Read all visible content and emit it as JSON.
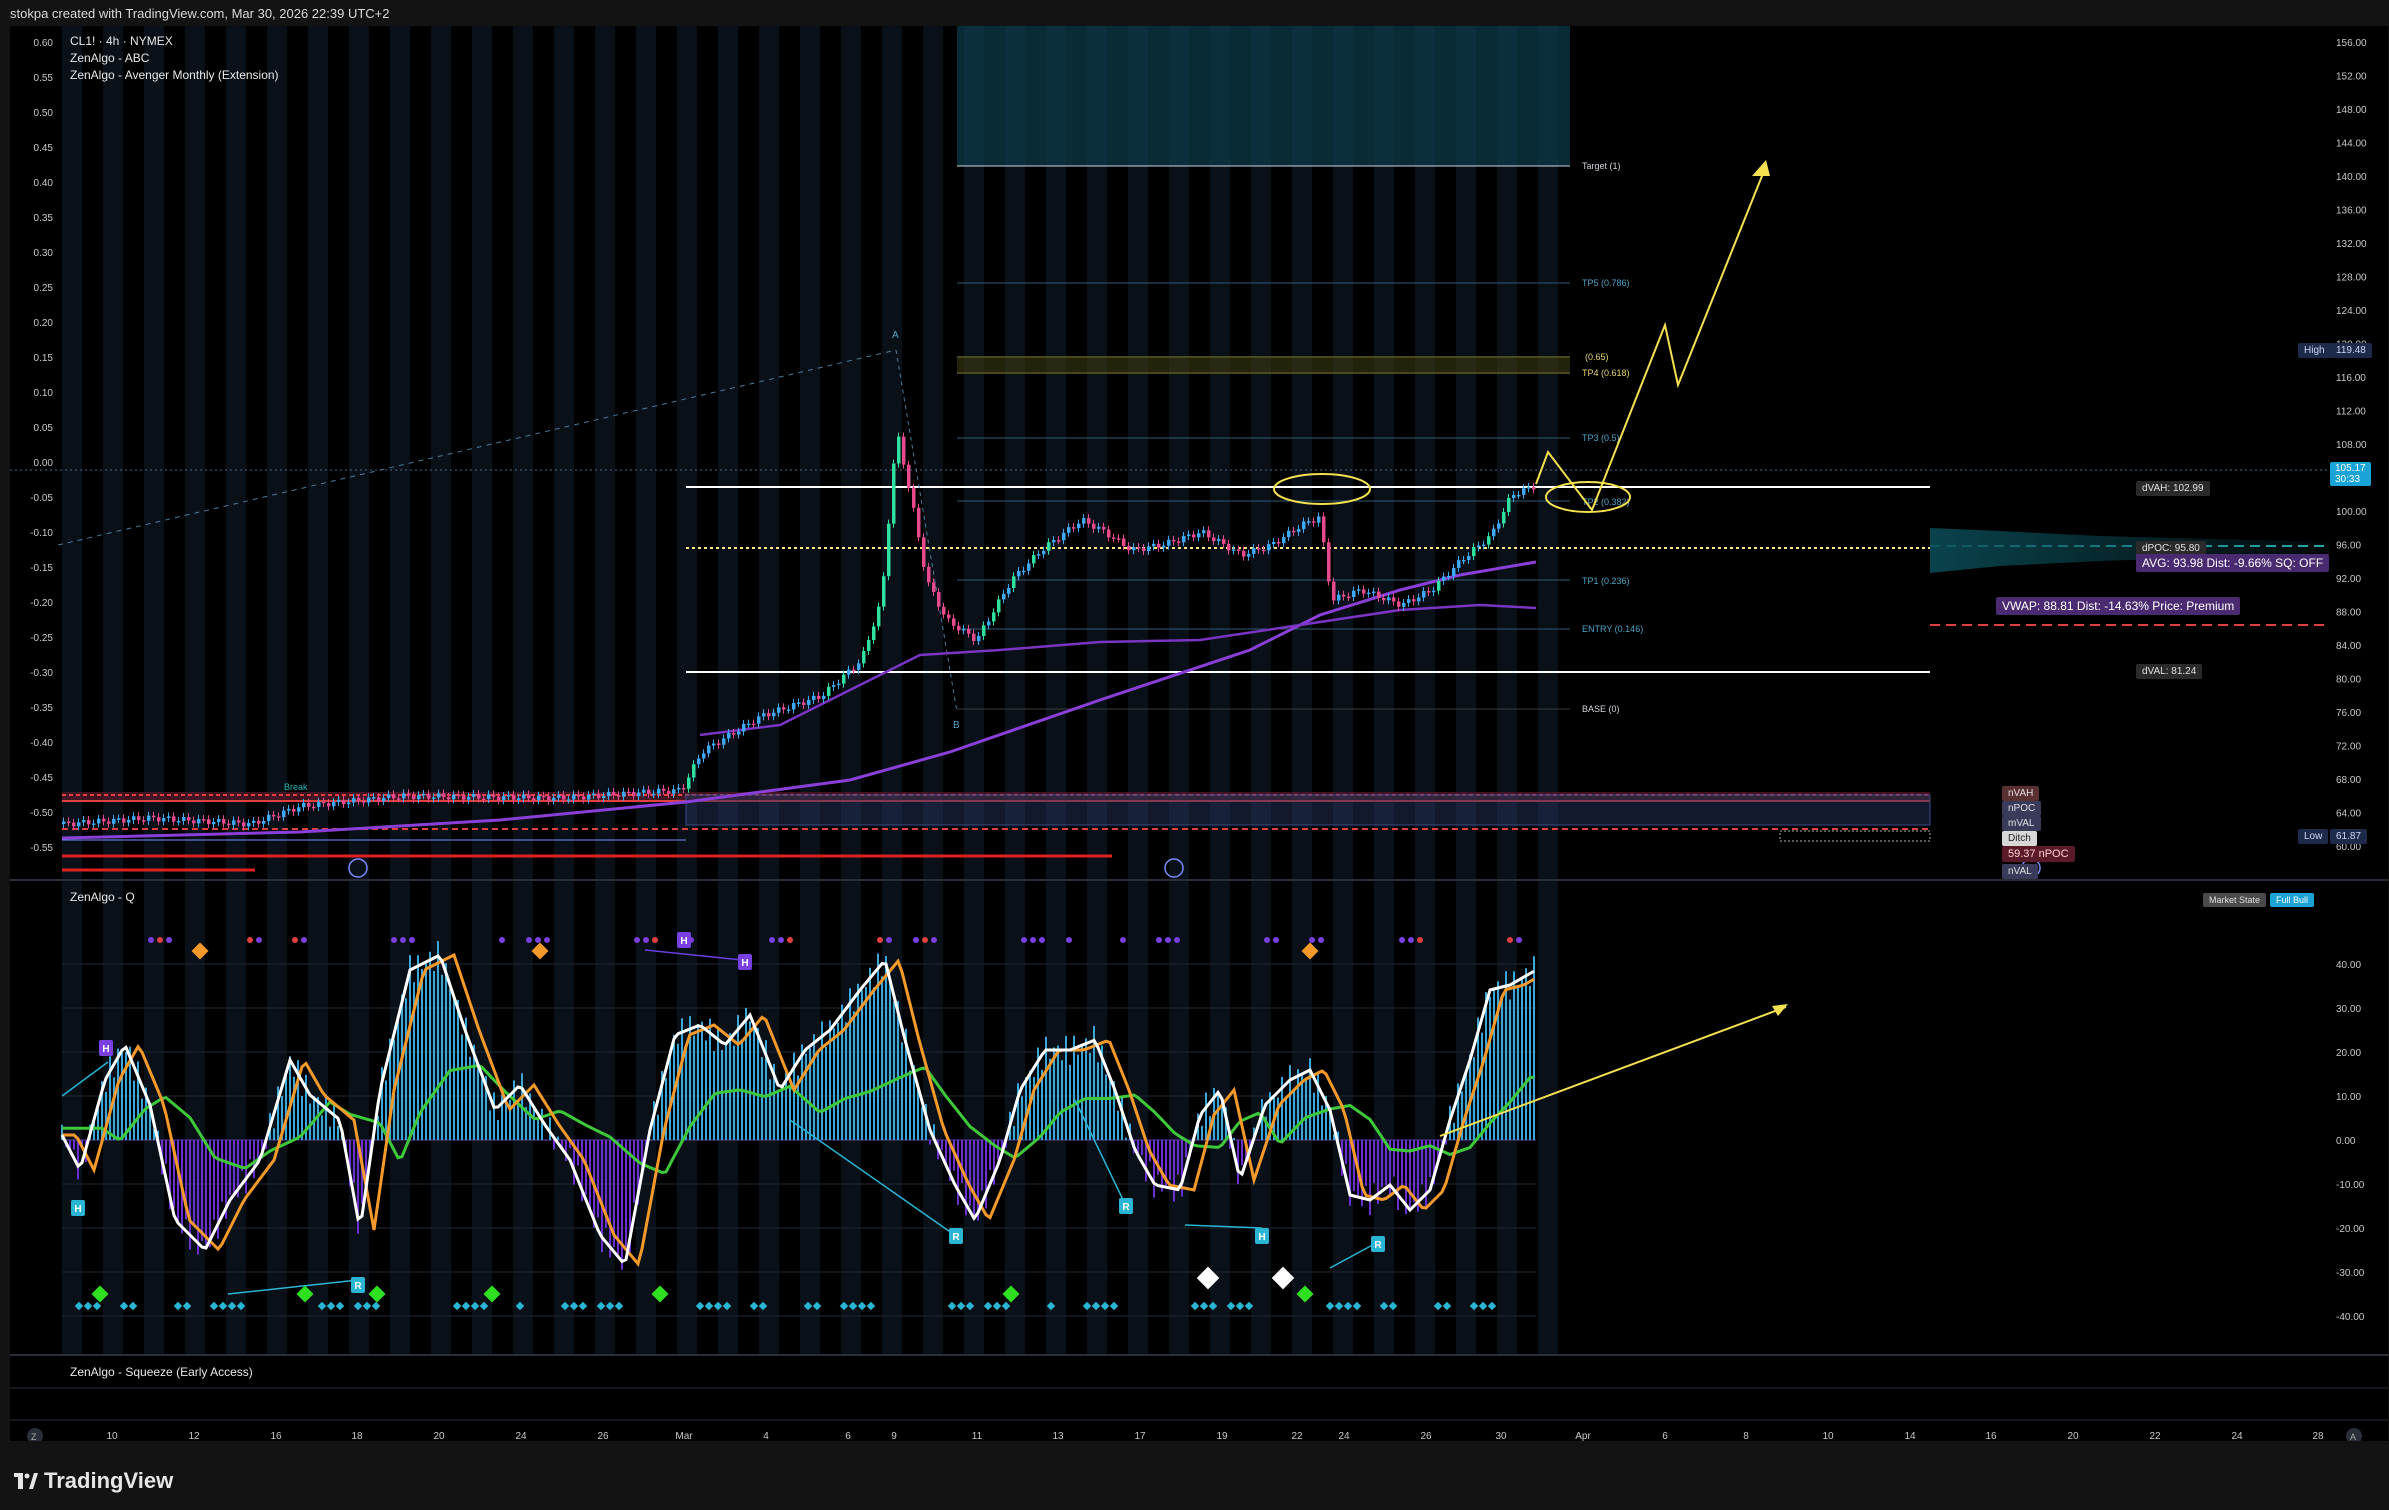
{
  "header": {
    "attribution": "stokpa created with TradingView.com, Mar 30, 2026 22:39 UTC+2"
  },
  "main_pane": {
    "symbol_line": "CL1! · 4h · NYMEX",
    "indicator_1": "ZenAlgo - ABC",
    "indicator_2": "ZenAlgo - Avenger Monthly (Extension)",
    "left_axis_ticks": [
      "0.60",
      "0.55",
      "0.50",
      "0.45",
      "0.40",
      "0.35",
      "0.30",
      "0.25",
      "0.20",
      "0.15",
      "0.10",
      "0.05",
      "0.00",
      "-0.05",
      "-0.10",
      "-0.15",
      "-0.20",
      "-0.25",
      "-0.30",
      "-0.35",
      "-0.40",
      "-0.45",
      "-0.50",
      "-0.55"
    ],
    "right_axis_ticks": [
      "156.00",
      "152.00",
      "148.00",
      "144.00",
      "140.00",
      "136.00",
      "132.00",
      "128.00",
      "124.00",
      "120.00",
      "116.00",
      "112.00",
      "108.00",
      "104.00",
      "100.00",
      "96.00",
      "92.00",
      "88.00",
      "84.00",
      "80.00",
      "76.00",
      "72.00",
      "68.00",
      "64.00",
      "60.00"
    ],
    "fib_levels": [
      {
        "label": "Target (1)",
        "color": "#d1d4dc"
      },
      {
        "label": "TP5 (0.786)",
        "color": "#4fa3c7"
      },
      {
        "label": "(0.65)",
        "color": "#e6d36b"
      },
      {
        "label": "TP4 (0.618)",
        "color": "#e6d36b"
      },
      {
        "label": "TP3 (0.5)",
        "color": "#4fa3c7"
      },
      {
        "label": "TP2 (0.382)",
        "color": "#4fa3c7"
      },
      {
        "label": "TP1 (0.236)",
        "color": "#4fa3c7"
      },
      {
        "label": "ENTRY (0.146)",
        "color": "#4fa3c7"
      },
      {
        "label": "BASE (0)",
        "color": "#d1d4dc"
      }
    ],
    "pattern_labels": {
      "a": "A",
      "b": "B",
      "break": "Break"
    },
    "high_label": "High",
    "high_value": "119.48",
    "low_label": "Low",
    "low_value": "61.87",
    "last_price": "105.17",
    "last_countdown": "30:33",
    "dvah": "dVAH: 102.99",
    "dpoc": "dPOC: 95.80",
    "avg": "AVG: 93.98  Dist: -9.66%  SQ: OFF",
    "vwap": "VWAP: 88.81  Dist: -14.63%  Price: Premium",
    "dval": "dVAL: 81.24",
    "stack_labels": [
      "nVAH",
      "nPOC",
      "mVAL",
      "Ditch",
      "59.37 nPOC",
      "nVAL"
    ]
  },
  "q_pane": {
    "title": "ZenAlgo - Q",
    "market_state_label": "Market State",
    "market_state_value": "Full Bull",
    "axis_ticks": [
      "40.00",
      "30.00",
      "20.00",
      "10.00",
      "0.00",
      "-10.00",
      "-20.00",
      "-30.00",
      "-40.00"
    ],
    "marker_labels": [
      "H",
      "H",
      "R",
      "R",
      "H",
      "H",
      "H",
      "R",
      "R"
    ]
  },
  "squeeze_pane": {
    "title": "ZenAlgo - Squeeze (Early Access)"
  },
  "time_axis": {
    "labels": [
      "10",
      "12",
      "16",
      "18",
      "20",
      "24",
      "26",
      "Mar",
      "4",
      "6",
      "9",
      "11",
      "13",
      "17",
      "19",
      "22",
      "24",
      "26",
      "30",
      "Apr",
      "6",
      "8",
      "10",
      "14",
      "16",
      "20",
      "22",
      "24",
      "28"
    ]
  },
  "footer": {
    "brand": "TradingView"
  },
  "colors": {
    "bull_candle": "#3fa8f5",
    "bear_candle": "#e64a8c",
    "strong_bull": "#2fe0a0",
    "ema": "#8b3fd9",
    "projection": "#f5e052",
    "osc_white": "#ffffff",
    "osc_orange": "#f59a2a",
    "osc_green": "#3ec93a"
  }
}
